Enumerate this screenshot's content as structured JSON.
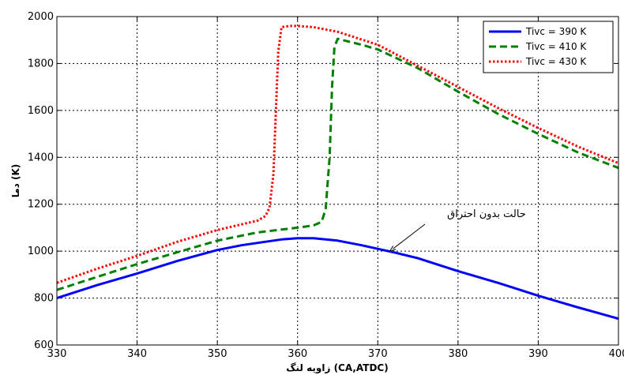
{
  "chart_data": {
    "type": "line",
    "xlabel": "زاویه لنگ (CA,ATDC)",
    "ylabel": "دما (K)",
    "xlim": [
      330,
      400
    ],
    "ylim": [
      600,
      2000
    ],
    "xticks": [
      330,
      340,
      350,
      360,
      370,
      380,
      390,
      400
    ],
    "yticks": [
      600,
      800,
      1000,
      1200,
      1400,
      1600,
      1800,
      2000
    ],
    "grid": true,
    "legend_position": "top-right",
    "series": [
      {
        "name": "Tivc = 390 K",
        "color": "#0000ff",
        "style": "solid",
        "x": [
          330,
          335,
          340,
          345,
          350,
          353,
          355,
          358,
          360,
          362,
          365,
          368,
          370,
          372,
          375,
          380,
          385,
          390,
          395,
          400
        ],
        "y": [
          800,
          855,
          905,
          958,
          1005,
          1025,
          1035,
          1050,
          1055,
          1055,
          1045,
          1025,
          1010,
          995,
          970,
          915,
          865,
          810,
          760,
          712
        ]
      },
      {
        "name": "Tivc = 410 K",
        "color": "#008000",
        "style": "dashed",
        "x": [
          330,
          335,
          340,
          345,
          350,
          355,
          360,
          362,
          363,
          363.5,
          364,
          364.3,
          364.6,
          365,
          368,
          370,
          375,
          380,
          385,
          390,
          395,
          400
        ],
        "y": [
          835,
          890,
          945,
          995,
          1045,
          1080,
          1100,
          1110,
          1125,
          1180,
          1400,
          1700,
          1870,
          1905,
          1880,
          1860,
          1780,
          1680,
          1585,
          1500,
          1420,
          1355
        ]
      },
      {
        "name": "Tivc = 430 K",
        "color": "#ff0000",
        "style": "dotted",
        "x": [
          330,
          335,
          340,
          345,
          350,
          355,
          356,
          356.5,
          357,
          357.3,
          357.6,
          358,
          359,
          360,
          362,
          365,
          370,
          375,
          380,
          385,
          390,
          395,
          400
        ],
        "y": [
          865,
          925,
          980,
          1040,
          1090,
          1130,
          1150,
          1185,
          1330,
          1600,
          1850,
          1955,
          1960,
          1960,
          1955,
          1935,
          1880,
          1790,
          1700,
          1610,
          1525,
          1445,
          1375
        ]
      }
    ],
    "annotations": [
      {
        "text": "حالت بدون احتراق",
        "points_to": {
          "x": 371.5,
          "y": 1000
        }
      }
    ]
  }
}
